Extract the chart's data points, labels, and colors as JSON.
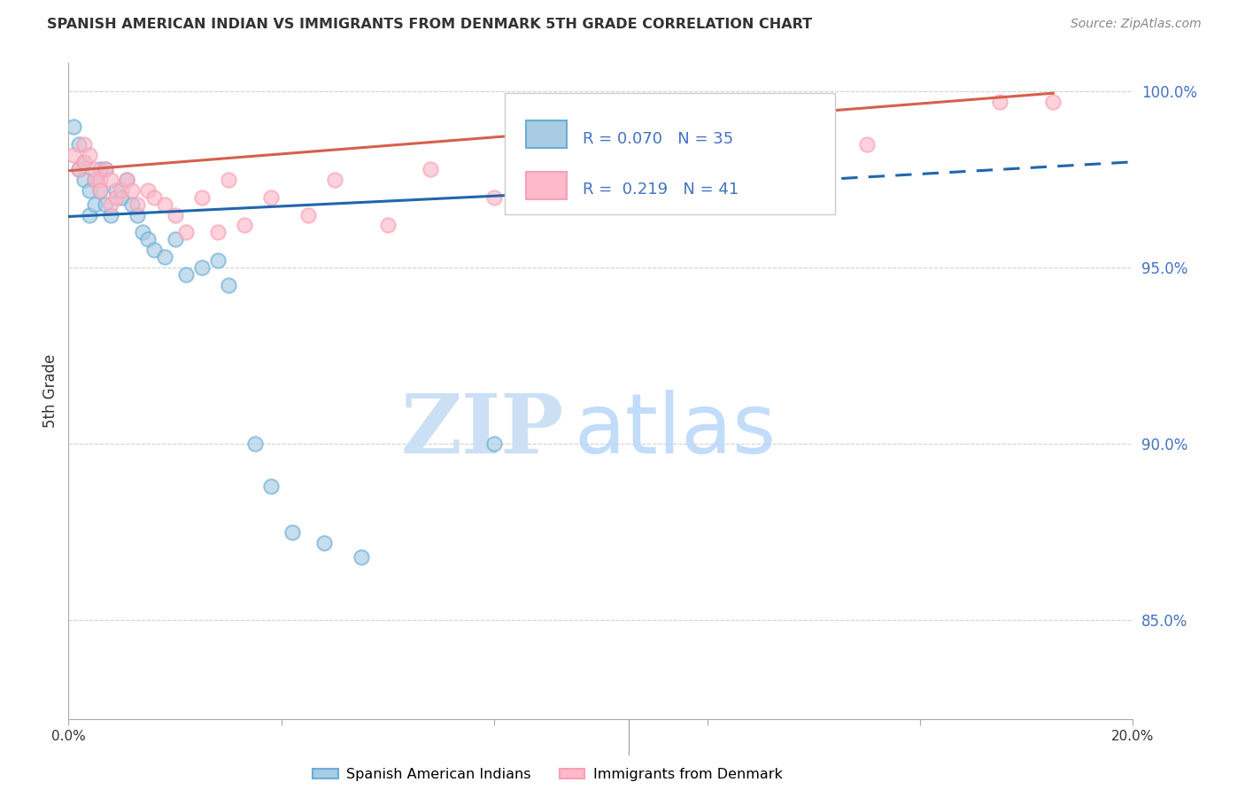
{
  "title": "SPANISH AMERICAN INDIAN VS IMMIGRANTS FROM DENMARK 5TH GRADE CORRELATION CHART",
  "source": "Source: ZipAtlas.com",
  "ylabel": "5th Grade",
  "xlim": [
    0.0,
    0.2
  ],
  "ylim": [
    0.822,
    1.008
  ],
  "yticks": [
    0.85,
    0.9,
    0.95,
    1.0
  ],
  "ytick_labels": [
    "85.0%",
    "90.0%",
    "95.0%",
    "100.0%"
  ],
  "blue_R": 0.07,
  "blue_N": 35,
  "pink_R": 0.219,
  "pink_N": 41,
  "blue_fill": "#a8cce4",
  "blue_edge": "#6baed6",
  "pink_fill": "#fcbacb",
  "pink_edge": "#fa9fb5",
  "blue_line_color": "#2166ac",
  "pink_line_color": "#d6604d",
  "legend_label_blue": "Spanish American Indians",
  "legend_label_pink": "Immigrants from Denmark",
  "blue_x": [
    0.001,
    0.002,
    0.002,
    0.003,
    0.003,
    0.004,
    0.004,
    0.005,
    0.005,
    0.006,
    0.006,
    0.007,
    0.007,
    0.008,
    0.009,
    0.01,
    0.011,
    0.012,
    0.013,
    0.014,
    0.015,
    0.016,
    0.018,
    0.02,
    0.022,
    0.025,
    0.028,
    0.03,
    0.035,
    0.038,
    0.042,
    0.048,
    0.055,
    0.08,
    0.13
  ],
  "blue_y": [
    0.99,
    0.985,
    0.978,
    0.98,
    0.975,
    0.972,
    0.965,
    0.975,
    0.968,
    0.978,
    0.972,
    0.978,
    0.968,
    0.965,
    0.972,
    0.97,
    0.975,
    0.968,
    0.965,
    0.96,
    0.958,
    0.955,
    0.953,
    0.958,
    0.948,
    0.95,
    0.952,
    0.945,
    0.9,
    0.888,
    0.875,
    0.872,
    0.868,
    0.9,
    0.975
  ],
  "pink_x": [
    0.001,
    0.002,
    0.003,
    0.003,
    0.004,
    0.005,
    0.005,
    0.006,
    0.006,
    0.007,
    0.008,
    0.008,
    0.009,
    0.01,
    0.011,
    0.012,
    0.013,
    0.015,
    0.016,
    0.018,
    0.02,
    0.022,
    0.025,
    0.028,
    0.03,
    0.033,
    0.038,
    0.045,
    0.05,
    0.06,
    0.068,
    0.08,
    0.09,
    0.1,
    0.11,
    0.12,
    0.13,
    0.14,
    0.15,
    0.175,
    0.185
  ],
  "pink_y": [
    0.982,
    0.978,
    0.985,
    0.98,
    0.982,
    0.975,
    0.978,
    0.975,
    0.972,
    0.978,
    0.975,
    0.968,
    0.97,
    0.972,
    0.975,
    0.972,
    0.968,
    0.972,
    0.97,
    0.968,
    0.965,
    0.96,
    0.97,
    0.96,
    0.975,
    0.962,
    0.97,
    0.965,
    0.975,
    0.962,
    0.978,
    0.97,
    0.972,
    0.983,
    0.978,
    0.985,
    0.98,
    0.98,
    0.985,
    0.997,
    0.997
  ],
  "watermark_color": "#ddeeff",
  "background_color": "#ffffff",
  "grid_color": "#cccccc"
}
